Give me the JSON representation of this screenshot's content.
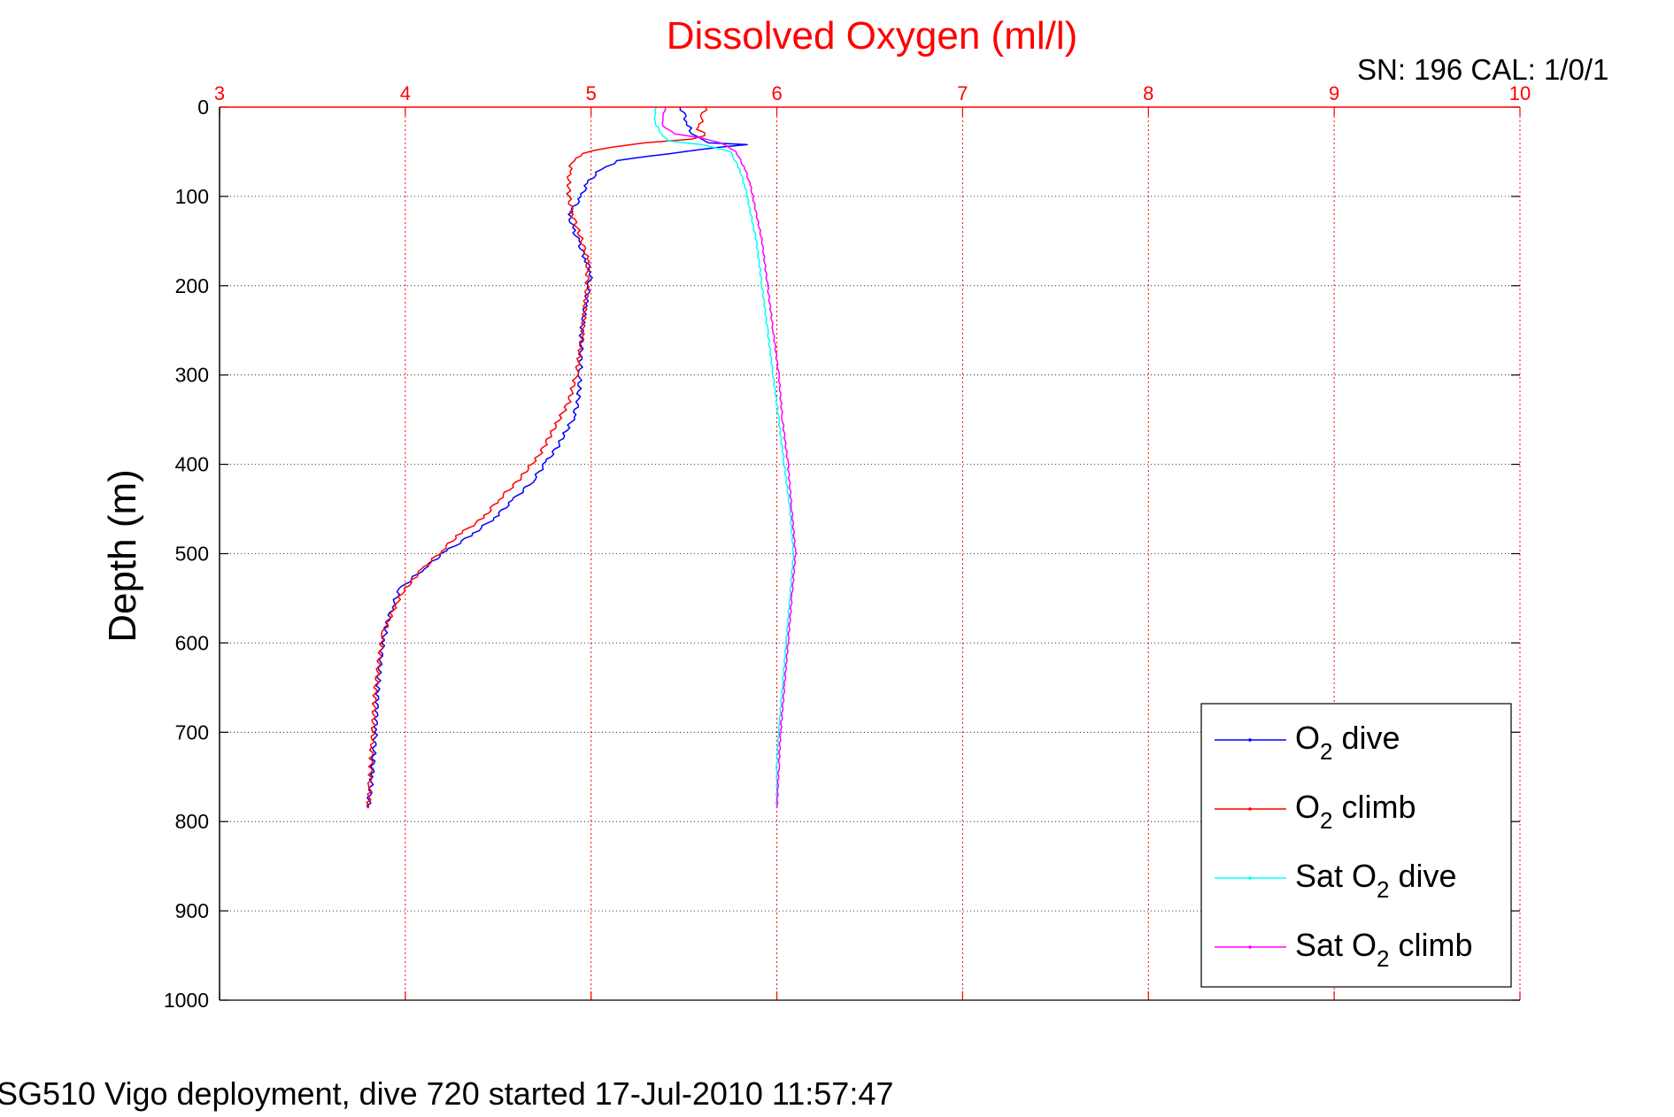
{
  "colors": {
    "accent_red": "#ff0000",
    "o2_dive": "#0000ff",
    "o2_climb": "#ff0000",
    "sat_o2_dive": "#00ffff",
    "sat_o2_climb": "#ff00ff",
    "grid_x": "#ff0000",
    "grid_y": "#000000"
  },
  "chart_data": {
    "type": "line",
    "title": "Dissolved Oxygen (ml/l)",
    "corner_note": "SN: 196  CAL: 1/0/1",
    "footer": "SG510 Vigo deployment, dive 720 started 17-Jul-2010 11:57:47",
    "ylabel": "Depth (m)",
    "xlabel": "",
    "xlim": [
      3,
      10
    ],
    "ylim": [
      0,
      1000
    ],
    "y_reversed": true,
    "x_axis_position": "top",
    "x_ticks": [
      "3",
      "4",
      "5",
      "6",
      "7",
      "8",
      "9",
      "10"
    ],
    "y_ticks": [
      "0",
      "100",
      "200",
      "300",
      "400",
      "500",
      "600",
      "700",
      "800",
      "900",
      "1000"
    ],
    "grid": true,
    "legend_position": "bottom-right",
    "series": [
      {
        "name": "O2 dive",
        "legend_main": "O",
        "legend_sub": "2",
        "legend_suffix": " dive",
        "color": "#0000ff",
        "points": [
          [
            5.48,
            0
          ],
          [
            5.5,
            10
          ],
          [
            5.52,
            20
          ],
          [
            5.55,
            30
          ],
          [
            5.62,
            40
          ],
          [
            5.85,
            42
          ],
          [
            5.7,
            45
          ],
          [
            5.5,
            50
          ],
          [
            5.3,
            55
          ],
          [
            5.15,
            60
          ],
          [
            5.05,
            70
          ],
          [
            4.98,
            85
          ],
          [
            4.95,
            100
          ],
          [
            4.88,
            120
          ],
          [
            4.9,
            135
          ],
          [
            4.93,
            150
          ],
          [
            4.97,
            170
          ],
          [
            5.0,
            185
          ],
          [
            4.99,
            200
          ],
          [
            4.97,
            220
          ],
          [
            4.95,
            250
          ],
          [
            4.94,
            300
          ],
          [
            4.93,
            330
          ],
          [
            4.9,
            350
          ],
          [
            4.82,
            380
          ],
          [
            4.75,
            400
          ],
          [
            4.68,
            420
          ],
          [
            4.58,
            440
          ],
          [
            4.48,
            460
          ],
          [
            4.35,
            480
          ],
          [
            4.2,
            500
          ],
          [
            4.08,
            520
          ],
          [
            3.97,
            540
          ],
          [
            3.93,
            560
          ],
          [
            3.9,
            580
          ],
          [
            3.88,
            600
          ],
          [
            3.86,
            630
          ],
          [
            3.85,
            660
          ],
          [
            3.84,
            700
          ],
          [
            3.82,
            750
          ],
          [
            3.8,
            785
          ]
        ]
      },
      {
        "name": "O2 climb",
        "legend_main": "O",
        "legend_sub": "2",
        "legend_suffix": " climb",
        "color": "#ff0000",
        "points": [
          [
            5.62,
            0
          ],
          [
            5.6,
            10
          ],
          [
            5.58,
            25
          ],
          [
            5.62,
            32
          ],
          [
            5.55,
            36
          ],
          [
            5.3,
            40
          ],
          [
            5.1,
            45
          ],
          [
            4.95,
            52
          ],
          [
            4.9,
            60
          ],
          [
            4.88,
            75
          ],
          [
            4.88,
            100
          ],
          [
            4.9,
            120
          ],
          [
            4.95,
            150
          ],
          [
            4.98,
            170
          ],
          [
            4.98,
            200
          ],
          [
            4.97,
            220
          ],
          [
            4.95,
            260
          ],
          [
            4.92,
            300
          ],
          [
            4.88,
            330
          ],
          [
            4.8,
            360
          ],
          [
            4.72,
            390
          ],
          [
            4.6,
            420
          ],
          [
            4.5,
            440
          ],
          [
            4.42,
            460
          ],
          [
            4.28,
            480
          ],
          [
            4.18,
            500
          ],
          [
            4.08,
            520
          ],
          [
            3.98,
            545
          ],
          [
            3.92,
            570
          ],
          [
            3.88,
            590
          ],
          [
            3.86,
            620
          ],
          [
            3.84,
            650
          ],
          [
            3.83,
            680
          ],
          [
            3.82,
            720
          ],
          [
            3.81,
            760
          ],
          [
            3.8,
            785
          ]
        ]
      },
      {
        "name": "Sat O2 dive",
        "legend_main": "Sat O",
        "legend_sub": "2",
        "legend_suffix": " dive",
        "color": "#00ffff",
        "points": [
          [
            5.35,
            0
          ],
          [
            5.34,
            10
          ],
          [
            5.35,
            20
          ],
          [
            5.38,
            30
          ],
          [
            5.42,
            38
          ],
          [
            5.6,
            42
          ],
          [
            5.75,
            50
          ],
          [
            5.8,
            70
          ],
          [
            5.83,
            90
          ],
          [
            5.86,
            120
          ],
          [
            5.89,
            150
          ],
          [
            5.92,
            200
          ],
          [
            5.95,
            250
          ],
          [
            5.98,
            300
          ],
          [
            6.01,
            350
          ],
          [
            6.04,
            400
          ],
          [
            6.07,
            450
          ],
          [
            6.09,
            500
          ],
          [
            6.07,
            550
          ],
          [
            6.05,
            600
          ],
          [
            6.03,
            650
          ],
          [
            6.01,
            700
          ],
          [
            6.0,
            740
          ],
          [
            6.0,
            785
          ]
        ]
      },
      {
        "name": "Sat O2 climb",
        "legend_main": "Sat O",
        "legend_sub": "2",
        "legend_suffix": " climb",
        "color": "#ff00ff",
        "points": [
          [
            5.4,
            0
          ],
          [
            5.39,
            10
          ],
          [
            5.38,
            20
          ],
          [
            5.45,
            30
          ],
          [
            5.6,
            35
          ],
          [
            5.7,
            40
          ],
          [
            5.78,
            50
          ],
          [
            5.83,
            70
          ],
          [
            5.86,
            90
          ],
          [
            5.89,
            120
          ],
          [
            5.92,
            150
          ],
          [
            5.95,
            200
          ],
          [
            5.98,
            250
          ],
          [
            6.01,
            300
          ],
          [
            6.03,
            350
          ],
          [
            6.06,
            400
          ],
          [
            6.08,
            450
          ],
          [
            6.1,
            500
          ],
          [
            6.08,
            550
          ],
          [
            6.06,
            600
          ],
          [
            6.04,
            650
          ],
          [
            6.02,
            700
          ],
          [
            6.01,
            740
          ],
          [
            6.0,
            785
          ]
        ]
      }
    ]
  }
}
